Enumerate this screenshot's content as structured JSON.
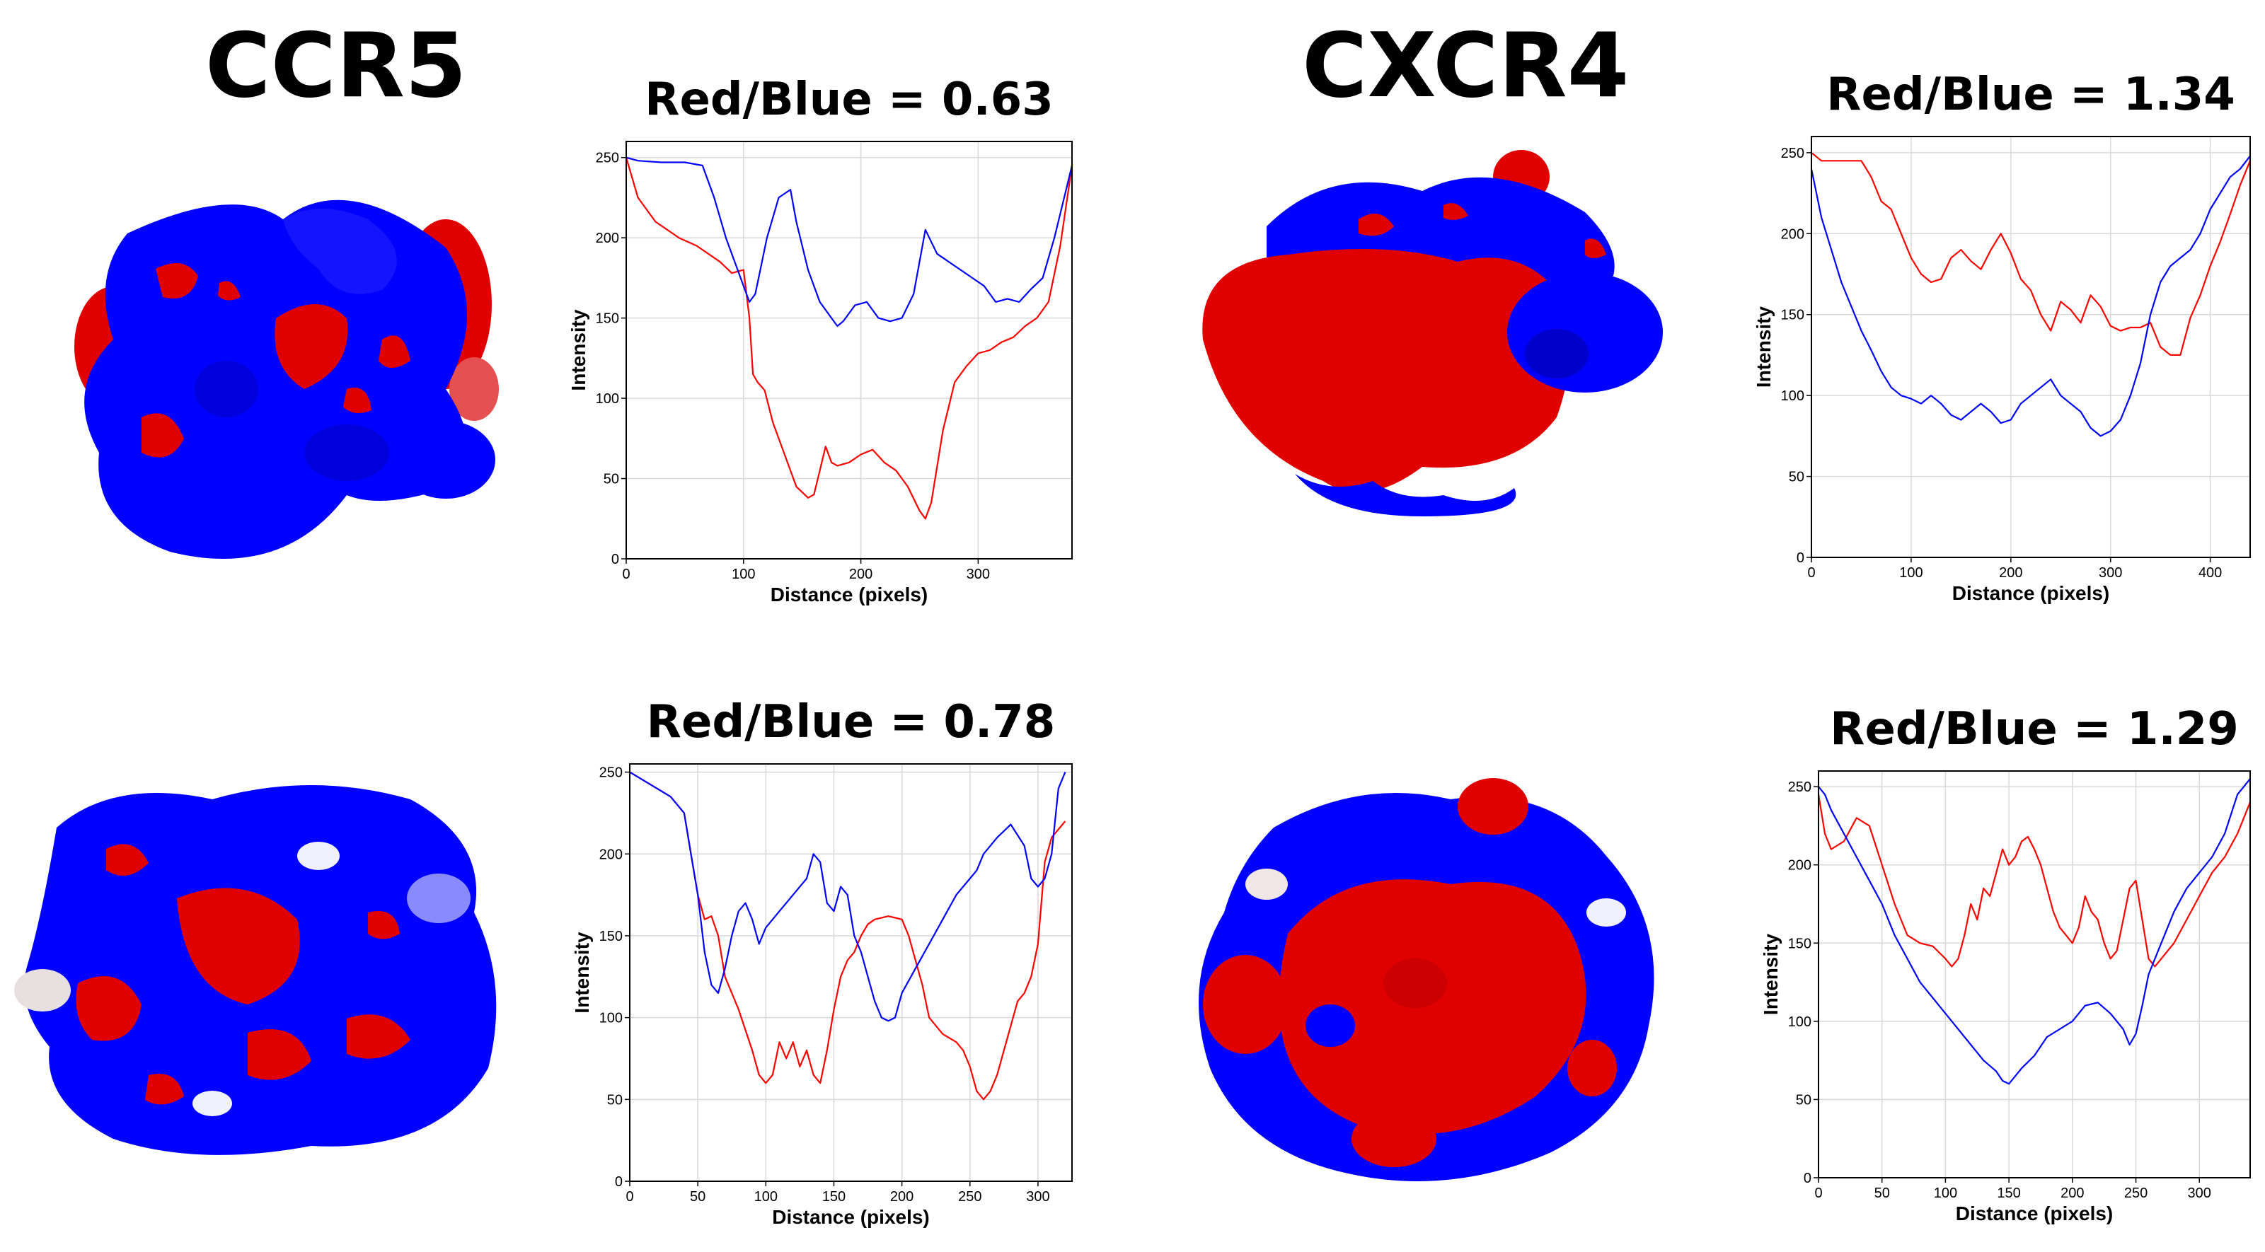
{
  "proteins": [
    {
      "name": "CCR5"
    },
    {
      "name": "CXCR4"
    }
  ],
  "colors": {
    "red_series": "#ff0000",
    "blue_series": "#0000ff",
    "grid": "#d9d9d9",
    "frame": "#000000"
  },
  "chart_data": [
    {
      "type": "line",
      "title": "Red/Blue = 0.63",
      "xlabel": "Distance (pixels)",
      "ylabel": "Intensity",
      "xlim": [
        0,
        380
      ],
      "ylim": [
        0,
        260
      ],
      "xticks": [
        0,
        100,
        200,
        300
      ],
      "yticks": [
        0,
        50,
        100,
        150,
        200,
        250
      ],
      "grid": true,
      "series": [
        {
          "color": "red",
          "x": [
            0,
            10,
            25,
            45,
            60,
            70,
            80,
            90,
            100,
            105,
            108,
            112,
            118,
            125,
            135,
            145,
            155,
            160,
            165,
            170,
            175,
            180,
            190,
            200,
            210,
            220,
            230,
            240,
            250,
            255,
            260,
            270,
            280,
            290,
            300,
            310,
            320,
            330,
            340,
            350,
            360,
            370,
            380
          ],
          "y": [
            250,
            225,
            210,
            200,
            195,
            190,
            185,
            178,
            180,
            150,
            115,
            110,
            105,
            85,
            65,
            45,
            38,
            40,
            55,
            70,
            60,
            58,
            60,
            65,
            68,
            60,
            55,
            45,
            30,
            25,
            35,
            80,
            110,
            120,
            128,
            130,
            135,
            138,
            145,
            150,
            160,
            195,
            245
          ]
        },
        {
          "color": "blue",
          "x": [
            0,
            10,
            30,
            50,
            65,
            75,
            85,
            95,
            100,
            105,
            110,
            120,
            130,
            140,
            145,
            155,
            165,
            175,
            180,
            185,
            195,
            205,
            215,
            225,
            235,
            245,
            250,
            255,
            265,
            275,
            285,
            295,
            305,
            315,
            325,
            335,
            345,
            355,
            365,
            375,
            380
          ],
          "y": [
            250,
            248,
            247,
            247,
            245,
            225,
            200,
            180,
            170,
            160,
            165,
            200,
            225,
            230,
            210,
            180,
            160,
            150,
            145,
            148,
            158,
            160,
            150,
            148,
            150,
            165,
            185,
            205,
            190,
            185,
            180,
            175,
            170,
            160,
            162,
            160,
            168,
            175,
            200,
            230,
            245
          ]
        }
      ]
    },
    {
      "type": "line",
      "title": "Red/Blue = 1.34",
      "xlabel": "Distance (pixels)",
      "ylabel": "Intensity",
      "xlim": [
        0,
        440
      ],
      "ylim": [
        0,
        260
      ],
      "xticks": [
        0,
        100,
        200,
        300,
        400
      ],
      "yticks": [
        0,
        50,
        100,
        150,
        200,
        250
      ],
      "grid": true,
      "series": [
        {
          "color": "red",
          "x": [
            0,
            10,
            30,
            50,
            60,
            70,
            80,
            90,
            100,
            110,
            120,
            130,
            140,
            150,
            160,
            170,
            180,
            190,
            200,
            210,
            220,
            230,
            240,
            250,
            260,
            270,
            280,
            290,
            300,
            310,
            320,
            330,
            340,
            350,
            360,
            370,
            380,
            390,
            400,
            410,
            420,
            430,
            440
          ],
          "y": [
            250,
            245,
            245,
            245,
            235,
            220,
            215,
            200,
            185,
            175,
            170,
            172,
            185,
            190,
            183,
            178,
            190,
            200,
            188,
            172,
            165,
            150,
            140,
            158,
            153,
            145,
            162,
            155,
            143,
            140,
            142,
            142,
            145,
            130,
            125,
            125,
            148,
            162,
            180,
            195,
            212,
            230,
            245
          ]
        },
        {
          "color": "blue",
          "x": [
            0,
            10,
            20,
            30,
            40,
            50,
            60,
            70,
            80,
            90,
            100,
            110,
            120,
            130,
            140,
            150,
            160,
            170,
            180,
            190,
            200,
            210,
            220,
            230,
            240,
            250,
            260,
            270,
            280,
            290,
            300,
            310,
            320,
            330,
            340,
            350,
            360,
            370,
            380,
            390,
            400,
            410,
            420,
            430,
            440
          ],
          "y": [
            240,
            210,
            190,
            170,
            155,
            140,
            128,
            115,
            105,
            100,
            98,
            95,
            100,
            95,
            88,
            85,
            90,
            95,
            90,
            83,
            85,
            95,
            100,
            105,
            110,
            100,
            95,
            90,
            80,
            75,
            78,
            85,
            100,
            120,
            150,
            170,
            180,
            185,
            190,
            200,
            215,
            225,
            235,
            240,
            248
          ]
        }
      ]
    },
    {
      "type": "line",
      "title": "Red/Blue = 0.78",
      "xlabel": "Distance (pixels)",
      "ylabel": "Intensity",
      "xlim": [
        0,
        325
      ],
      "ylim": [
        0,
        255
      ],
      "xticks": [
        0,
        50,
        100,
        150,
        200,
        250,
        300
      ],
      "yticks": [
        0,
        50,
        100,
        150,
        200,
        250
      ],
      "grid": true,
      "series": [
        {
          "color": "red",
          "x": [
            0,
            10,
            20,
            30,
            40,
            45,
            50,
            55,
            60,
            65,
            70,
            80,
            90,
            95,
            100,
            105,
            110,
            115,
            120,
            125,
            130,
            135,
            140,
            145,
            150,
            155,
            160,
            165,
            170,
            175,
            180,
            190,
            200,
            205,
            210,
            215,
            220,
            225,
            230,
            240,
            245,
            250,
            255,
            260,
            265,
            270,
            275,
            280,
            285,
            290,
            295,
            300,
            305,
            310,
            315,
            320
          ],
          "y": [
            250,
            245,
            240,
            235,
            225,
            200,
            175,
            160,
            162,
            150,
            125,
            105,
            80,
            65,
            60,
            65,
            85,
            75,
            85,
            70,
            80,
            65,
            60,
            80,
            105,
            125,
            135,
            140,
            150,
            157,
            160,
            162,
            160,
            150,
            135,
            120,
            100,
            95,
            90,
            85,
            80,
            70,
            55,
            50,
            55,
            65,
            80,
            95,
            110,
            115,
            125,
            145,
            195,
            210,
            215,
            220
          ]
        },
        {
          "color": "blue",
          "x": [
            0,
            10,
            20,
            30,
            40,
            45,
            50,
            55,
            60,
            65,
            70,
            75,
            80,
            85,
            90,
            95,
            100,
            110,
            120,
            130,
            135,
            140,
            145,
            150,
            155,
            160,
            165,
            170,
            175,
            180,
            185,
            190,
            195,
            200,
            210,
            220,
            230,
            240,
            250,
            255,
            260,
            270,
            280,
            290,
            295,
            300,
            305,
            310,
            315,
            320
          ],
          "y": [
            250,
            245,
            240,
            235,
            225,
            200,
            175,
            140,
            120,
            115,
            130,
            150,
            165,
            170,
            160,
            145,
            155,
            165,
            175,
            185,
            200,
            195,
            170,
            165,
            180,
            175,
            150,
            140,
            125,
            110,
            100,
            98,
            100,
            115,
            130,
            145,
            160,
            175,
            185,
            190,
            200,
            210,
            218,
            205,
            185,
            180,
            185,
            200,
            240,
            250
          ]
        }
      ]
    },
    {
      "type": "line",
      "title": "Red/Blue = 1.29",
      "xlabel": "Distance (pixels)",
      "ylabel": "Intensity",
      "xlim": [
        0,
        340
      ],
      "ylim": [
        0,
        260
      ],
      "xticks": [
        0,
        50,
        100,
        150,
        200,
        250,
        300
      ],
      "yticks": [
        0,
        50,
        100,
        150,
        200,
        250
      ],
      "grid": true,
      "series": [
        {
          "color": "red",
          "x": [
            0,
            5,
            10,
            20,
            30,
            40,
            50,
            60,
            70,
            80,
            90,
            100,
            105,
            110,
            115,
            120,
            125,
            130,
            135,
            140,
            145,
            150,
            155,
            160,
            165,
            170,
            175,
            180,
            185,
            190,
            195,
            200,
            205,
            210,
            215,
            220,
            225,
            230,
            235,
            240,
            245,
            250,
            255,
            260,
            265,
            270,
            275,
            280,
            290,
            300,
            310,
            320,
            330,
            340
          ],
          "y": [
            245,
            220,
            210,
            215,
            230,
            225,
            200,
            175,
            155,
            150,
            148,
            140,
            135,
            140,
            155,
            175,
            165,
            185,
            180,
            195,
            210,
            200,
            205,
            215,
            218,
            210,
            200,
            185,
            170,
            160,
            155,
            150,
            160,
            180,
            170,
            165,
            150,
            140,
            145,
            165,
            185,
            190,
            165,
            140,
            135,
            140,
            145,
            150,
            165,
            180,
            195,
            205,
            220,
            240
          ]
        },
        {
          "color": "blue",
          "x": [
            0,
            5,
            10,
            20,
            30,
            40,
            50,
            60,
            70,
            80,
            90,
            100,
            110,
            120,
            130,
            140,
            145,
            150,
            155,
            160,
            170,
            180,
            190,
            200,
            210,
            220,
            230,
            240,
            245,
            250,
            255,
            260,
            270,
            280,
            290,
            300,
            310,
            320,
            330,
            340
          ],
          "y": [
            250,
            245,
            235,
            220,
            205,
            190,
            175,
            155,
            140,
            125,
            115,
            105,
            95,
            85,
            75,
            68,
            62,
            60,
            65,
            70,
            78,
            90,
            95,
            100,
            110,
            112,
            105,
            95,
            85,
            92,
            110,
            130,
            150,
            170,
            185,
            195,
            205,
            220,
            245,
            255
          ]
        }
      ]
    }
  ]
}
